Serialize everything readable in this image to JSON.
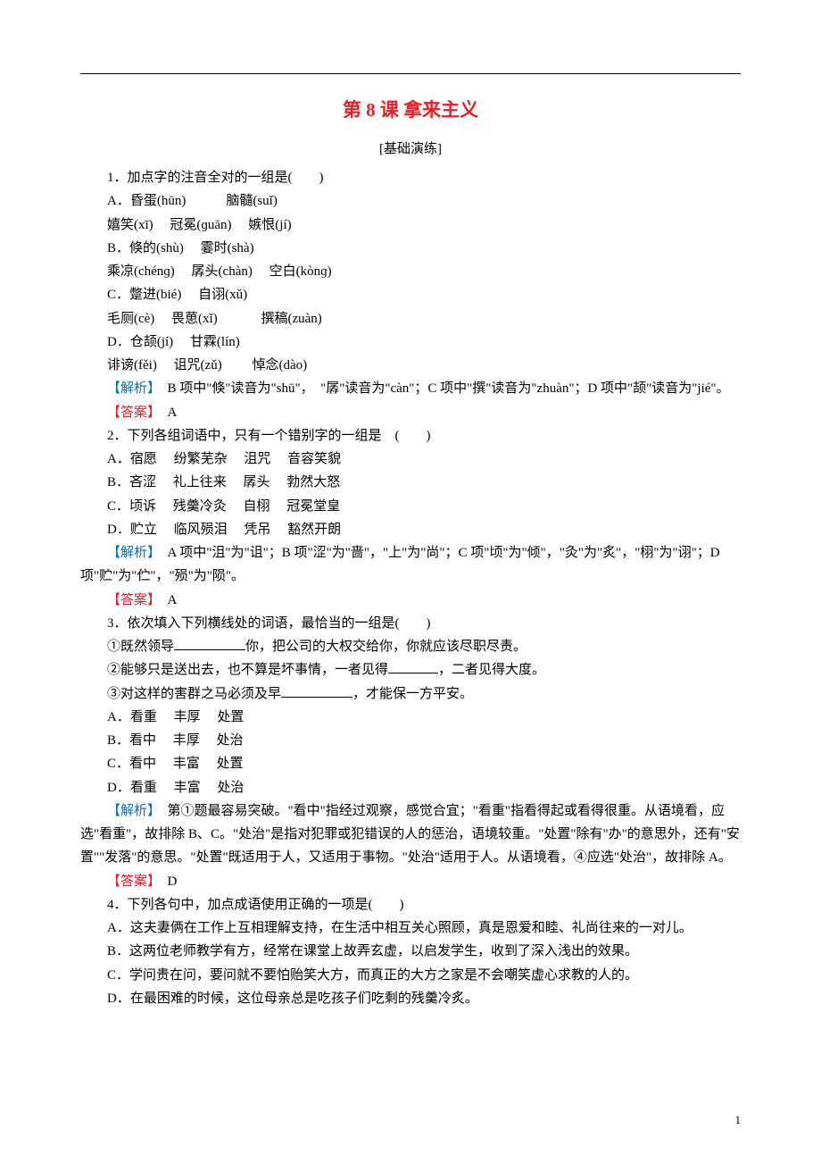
{
  "page": {
    "title": "第 8 课  拿来主义",
    "subtitle": "[基础演练]",
    "page_number": "1"
  },
  "colors": {
    "title_color": "#ed1c24",
    "blue_label": "#0070c0",
    "red_label": "#ed1c24",
    "text_color": "#000000",
    "background": "#ffffff"
  },
  "typography": {
    "title_fontsize": 21,
    "body_fontsize": 15,
    "line_height": 1.75,
    "font_family": "SimSun"
  },
  "q1": {
    "stem": "1．加点字的注音全对的一组是(　　)",
    "optA_line1": "A．昏蛋(hūn)　　　脑髓(suǐ)",
    "optA_line2": "嬉笑(xī)　 冠冕(ɡuān)　 嫉恨(jí)",
    "optB_line1": "B．倏的(shù)　 霎时(shà)",
    "optB_line2": "乘凉(chénɡ)　 孱头(chàn)　 空白(kònɡ)",
    "optC_line1": "C．蹩进(bié)　 自诩(xǔ)",
    "optC_line2": "毛厕(cè)　 畏葸(xǐ)　　　 撰稿(zuàn)",
    "optD_line1": "D．仓颉(jí)　 甘霖(lín)",
    "optD_line2": "诽谤(fěi)　 诅咒(zǔ)　　 悼念(dào)",
    "analysis_label": "【解析】",
    "analysis": "　B 项中\"倏\"读音为\"shū\"，　\"孱\"读音为\"càn\"；C 项中\"撰\"读音为\"zhuàn\"；D 项中\"颉\"读音为\"jié\"。",
    "answer_label": "【答案】",
    "answer": "　A"
  },
  "q2": {
    "stem": "2．下列各组词语中，只有一个错别字的一组是　(　　)",
    "optA": "A．宿愿　 纷繁芜杂　 沮咒　 音容笑貌",
    "optB": "B．吝涩　 礼上往来　 孱头　 勃然大怒",
    "optC": "C．顷诉　 残羹冷灸　 自栩　 冠冕堂皇",
    "optD": "D．贮立　 临风殒泪　 凭吊　 豁然开朗",
    "analysis_label": "【解析】",
    "analysis": "　A 项中\"沮\"为\"诅\"；B 项\"涩\"为\"啬\"，\"上\"为\"尚\"；C 项\"顷\"为\"倾\"，\"灸\"为\"炙\"，\"栩\"为\"诩\"；D 项\"贮\"为\"伫\"，\"殒\"为\"陨\"。",
    "answer_label": "【答案】",
    "answer": "　A"
  },
  "q3": {
    "stem": "3．依次填入下列横线处的词语，最恰当的一组是(　　)",
    "line1_a": "①既然领导",
    "line1_b": "你，把公司的大权交给你，你就应该尽职尽责。",
    "line2_a": "②能够只是送出去，也不算是坏事情，一者见得",
    "line2_b": "，二者见得大度。",
    "line3_a": "③对这样的害群之马必须及早",
    "line3_b": "，才能保一方平安。",
    "optA": "A．看重　 丰厚　 处置",
    "optB": "B．看中　 丰厚　 处治",
    "optC": "C．看中　 丰富　 处置",
    "optD": "D．看重　 丰富　 处治",
    "analysis_label": "【解析】",
    "analysis": "　第①题最容易突破。\"看中\"指经过观察，感觉合宜；\"看重\"指看得起或看得很重。从语境看，应选\"看重\"，故排除 B、C。\"处治\"是指对犯罪或犯错误的人的惩治，语境较重。\"处置\"除有\"办\"的意思外，还有\"安置\"\"发落\"的意思。\"处置\"既适用于人，又适用于事物。\"处治\"适用于人。从语境看，④应选\"处治\"，故排除 A。",
    "answer_label": "【答案】",
    "answer": "　D"
  },
  "q4": {
    "stem": "4．下列各句中，加点成语使用正确的一项是(　　)",
    "optA": "A．这夫妻俩在工作上互相理解支持，在生活中相互关心照顾，真是恩爱和睦、礼尚往来的一对儿。",
    "optB": "B．这两位老师教学有方，经常在课堂上故弄玄虚，以启发学生，收到了深入浅出的效果。",
    "optC": "C．学问贵在问，要问就不要怕贻笑大方，而真正的大方之家是不会嘲笑虚心求教的人的。",
    "optD": "D．在最困难的时候，这位母亲总是吃孩子们吃剩的残羹冷炙。"
  }
}
